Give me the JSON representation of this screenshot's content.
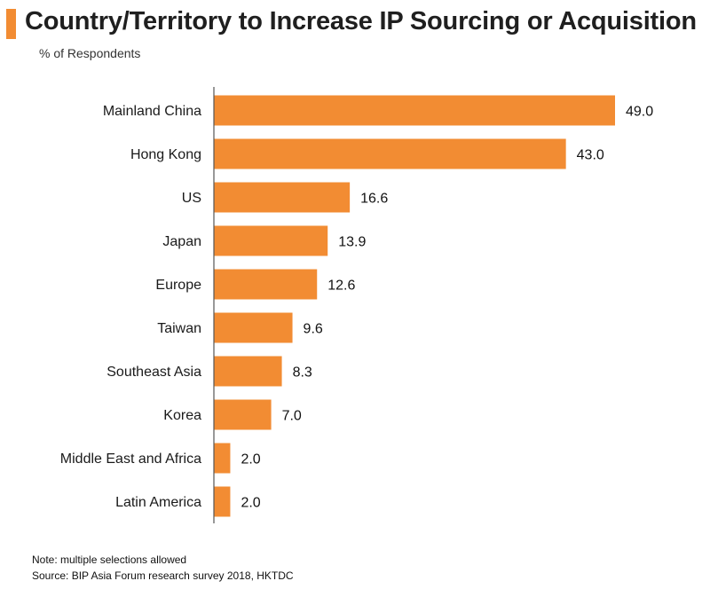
{
  "header": {
    "title": "Country/Territory to Increase IP Sourcing or Acquisition",
    "subtitle": "% of Respondents"
  },
  "footer": {
    "note": "Note: multiple selections allowed",
    "source": "Source: BIP Asia Forum research survey 2018, HKTDC"
  },
  "colors": {
    "bar": "#f28c33",
    "accent": "#f28c33",
    "axis": "#555555"
  },
  "chart_data": {
    "type": "bar",
    "orientation": "horizontal",
    "categories": [
      "Mainland China",
      "Hong Kong",
      "US",
      "Japan",
      "Europe",
      "Taiwan",
      "Southeast Asia",
      "Korea",
      "Middle East and Africa",
      "Latin America"
    ],
    "values": [
      49.0,
      43.0,
      16.6,
      13.9,
      12.6,
      9.6,
      8.3,
      7.0,
      2.0,
      2.0
    ],
    "value_labels": [
      "49.0",
      "43.0",
      "16.6",
      "13.9",
      "12.6",
      "9.6",
      "8.3",
      "7.0",
      "2.0",
      "2.0"
    ],
    "title": "Country/Territory to Increase IP Sourcing or Acquisition",
    "xlabel": "",
    "ylabel": "",
    "xlim": [
      0,
      49.0
    ],
    "grid": false,
    "legend": "none"
  }
}
